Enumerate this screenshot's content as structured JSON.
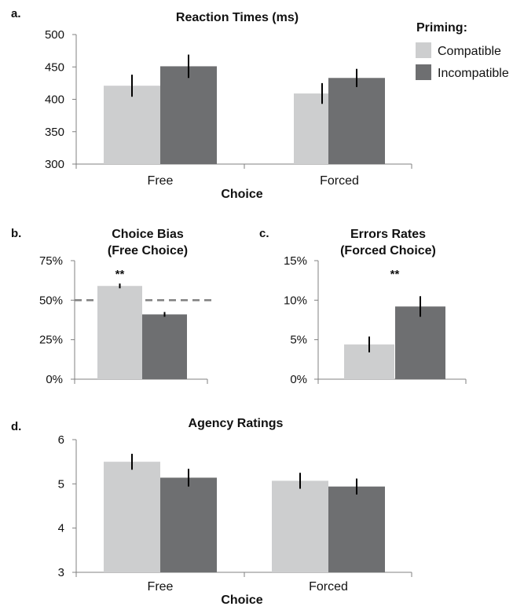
{
  "legend": {
    "title": "Priming:",
    "items": [
      {
        "label": "Compatible",
        "color": "#cdcecf"
      },
      {
        "label": "Incompatible",
        "color": "#6e6f71"
      }
    ]
  },
  "chart_data": [
    {
      "panel": "a.",
      "type": "bar",
      "title": "Reaction Times (ms)",
      "xlabel": "Choice",
      "ylabel": "",
      "categories": [
        "Free",
        "Forced"
      ],
      "ylim": [
        300,
        500
      ],
      "yticks": [
        300,
        350,
        400,
        450,
        500
      ],
      "ytick_labels": [
        "300",
        "350",
        "400",
        "450",
        "500"
      ],
      "series": [
        {
          "name": "Compatible",
          "values": [
            421,
            409
          ],
          "errors": [
            17,
            16
          ]
        },
        {
          "name": "Incompatible",
          "values": [
            451,
            433
          ],
          "errors": [
            18,
            14
          ]
        }
      ]
    },
    {
      "panel": "b.",
      "type": "bar",
      "title": "Choice Bias",
      "subtitle": "(Free Choice)",
      "xlabel": "",
      "ylabel": "",
      "categories": [
        ""
      ],
      "ylim": [
        0,
        75
      ],
      "yticks": [
        0,
        25,
        50,
        75
      ],
      "ytick_labels": [
        "0%",
        "25%",
        "50%",
        "75%"
      ],
      "reference_line": 50,
      "annotation": "**",
      "series": [
        {
          "name": "Compatible",
          "values": [
            59
          ],
          "errors": [
            1.5
          ]
        },
        {
          "name": "Incompatible",
          "values": [
            41
          ],
          "errors": [
            1.5
          ]
        }
      ]
    },
    {
      "panel": "c.",
      "type": "bar",
      "title": "Errors Rates",
      "subtitle": "(Forced Choice)",
      "xlabel": "",
      "ylabel": "",
      "categories": [
        ""
      ],
      "ylim": [
        0,
        15
      ],
      "yticks": [
        0,
        5,
        10,
        15
      ],
      "ytick_labels": [
        "0%",
        "5%",
        "10%",
        "15%"
      ],
      "annotation": "**",
      "series": [
        {
          "name": "Compatible",
          "values": [
            4.4
          ],
          "errors": [
            1.0
          ]
        },
        {
          "name": "Incompatible",
          "values": [
            9.2
          ],
          "errors": [
            1.3
          ]
        }
      ]
    },
    {
      "panel": "d.",
      "type": "bar",
      "title": "Agency Ratings",
      "xlabel": "Choice",
      "ylabel": "",
      "categories": [
        "Free",
        "Forced"
      ],
      "ylim": [
        3,
        6
      ],
      "yticks": [
        3,
        4,
        5,
        6
      ],
      "ytick_labels": [
        "3",
        "4",
        "5",
        "6"
      ],
      "series": [
        {
          "name": "Compatible",
          "values": [
            5.5,
            5.07
          ],
          "errors": [
            0.18,
            0.18
          ]
        },
        {
          "name": "Incompatible",
          "values": [
            5.14,
            4.94
          ],
          "errors": [
            0.2,
            0.18
          ]
        }
      ]
    }
  ]
}
